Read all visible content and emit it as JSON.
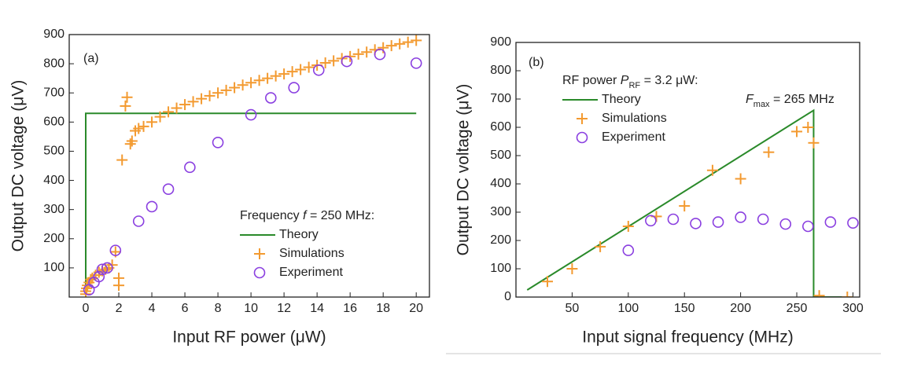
{
  "chart_data": [
    {
      "type": "scatter",
      "panel_label": "(a)",
      "x_label": "Input RF power (μW)",
      "y_label": "Output DC voltage (μV)",
      "legend_title": [
        {
          "text": "Frequency "
        },
        {
          "text": "f",
          "italic": true
        },
        {
          "text": " = 250 MHz:"
        }
      ],
      "xlim": [
        -1,
        20.8
      ],
      "xticks": [
        0,
        2,
        4,
        6,
        8,
        10,
        12,
        14,
        16,
        18,
        20
      ],
      "ylim": [
        0,
        900
      ],
      "yticks": [
        100,
        200,
        300,
        400,
        500,
        600,
        700,
        800,
        900
      ],
      "series": [
        {
          "name": "Theory",
          "color": "#2a8a2a",
          "marker": "line",
          "x": [
            0,
            0,
            20
          ],
          "values": [
            0,
            630,
            630
          ]
        },
        {
          "name": "Simulations",
          "color": "#f39a30",
          "marker": "plus",
          "x": [
            0,
            0,
            0.05,
            0.1,
            0.2,
            0.3,
            0.4,
            0.6,
            0.8,
            1.0,
            1.2,
            1.4,
            1.6,
            1.8,
            2.0,
            2.0,
            2.2,
            2.4,
            2.5,
            2.7,
            2.8,
            3.0,
            3.2,
            3.5,
            4,
            4.5,
            5,
            5.5,
            6,
            6.5,
            7,
            7.5,
            8,
            8.5,
            9,
            9.5,
            10,
            10.5,
            11,
            11.5,
            12,
            12.5,
            13,
            13.5,
            14,
            14.5,
            15,
            15.5,
            16,
            16.5,
            17,
            17.5,
            18,
            18.5,
            19,
            19.5,
            20
          ],
          "values": [
            10,
            20,
            30,
            40,
            50,
            60,
            65,
            75,
            85,
            90,
            95,
            100,
            110,
            155,
            40,
            65,
            470,
            655,
            685,
            525,
            535,
            570,
            578,
            585,
            600,
            618,
            635,
            648,
            660,
            670,
            680,
            690,
            700,
            709,
            718,
            727,
            735,
            743,
            750,
            758,
            765,
            773,
            780,
            788,
            795,
            803,
            810,
            818,
            825,
            833,
            840,
            848,
            855,
            862,
            868,
            874,
            880
          ]
        },
        {
          "name": "Experiment",
          "color": "#8a3fe0",
          "marker": "circle",
          "x": [
            0.2,
            0.5,
            0.8,
            1.0,
            1.3,
            1.8,
            3.2,
            4,
            5,
            6.3,
            8,
            10,
            11.2,
            12.6,
            14.1,
            15.8,
            17.8,
            20
          ],
          "values": [
            25,
            50,
            70,
            95,
            100,
            160,
            260,
            310,
            370,
            445,
            530,
            625,
            683,
            718,
            778,
            808,
            832,
            802
          ]
        }
      ]
    },
    {
      "type": "scatter",
      "panel_label": "(b)",
      "x_label": "Input signal frequency (MHz)",
      "y_label": "Output DC voltage (μV)",
      "legend_title": [
        {
          "text": "RF power "
        },
        {
          "text": "P",
          "italic": true
        },
        {
          "text": "RF",
          "sub": true
        },
        {
          "text": " = 3.2 μW:"
        }
      ],
      "annotation": [
        {
          "text": "F",
          "italic": true
        },
        {
          "text": "max",
          "sub": true
        },
        {
          "text": " = 265 MHz"
        }
      ],
      "xlim": [
        0,
        306
      ],
      "xticks": [
        50,
        100,
        150,
        200,
        250,
        300
      ],
      "ylim": [
        0,
        900
      ],
      "yticks": [
        0,
        100,
        200,
        300,
        400,
        500,
        600,
        700,
        800,
        900
      ],
      "series": [
        {
          "name": "Theory",
          "color": "#2a8a2a",
          "marker": "line",
          "x": [
            10,
            265,
            265,
            300
          ],
          "values": [
            25,
            660,
            0,
            0
          ]
        },
        {
          "name": "Simulations",
          "color": "#f39a30",
          "marker": "plus",
          "x": [
            28,
            50,
            75,
            100,
            125,
            150,
            175,
            200,
            225,
            250,
            260,
            265,
            270,
            295
          ],
          "values": [
            55,
            100,
            178,
            250,
            285,
            322,
            448,
            418,
            512,
            585,
            600,
            545,
            5,
            0
          ]
        },
        {
          "name": "Experiment",
          "color": "#8a3fe0",
          "marker": "circle",
          "x": [
            100,
            120,
            140,
            160,
            180,
            200,
            220,
            240,
            260,
            280,
            300
          ],
          "values": [
            165,
            270,
            275,
            260,
            265,
            282,
            275,
            258,
            250,
            265,
            262
          ]
        }
      ]
    }
  ]
}
